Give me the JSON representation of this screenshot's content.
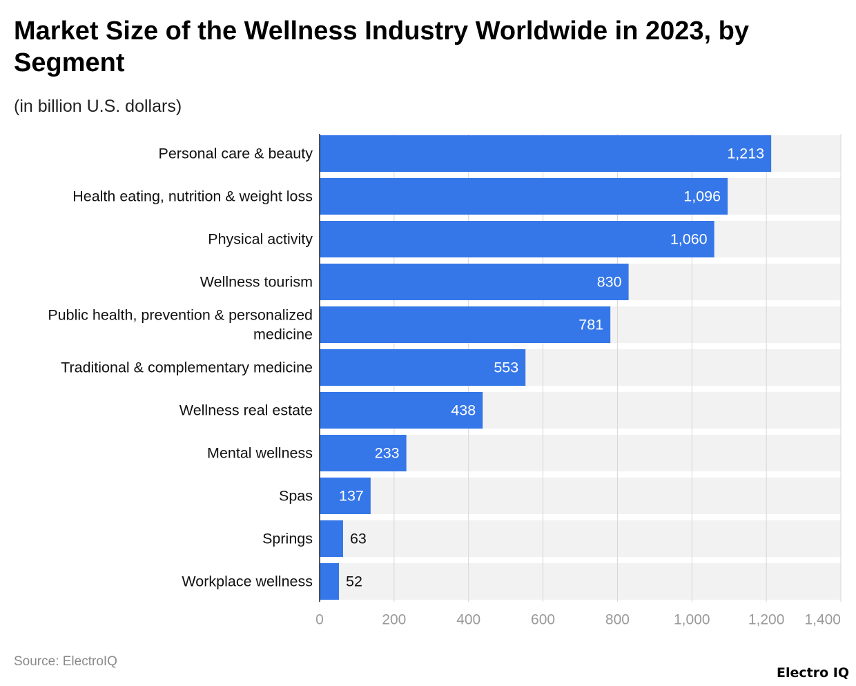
{
  "header": {
    "title": "Market Size of the Wellness Industry Worldwide in 2023, by Segment",
    "subtitle": "(in billion U.S. dollars)"
  },
  "footer": {
    "source": "Source: ElectroIQ",
    "brand": "Electro IQ"
  },
  "colors": {
    "bar": "#3577e8",
    "track": "#f2f2f2",
    "grid": "#d6d6d6",
    "axis": "#222222",
    "label_inside": "#ffffff",
    "label_outside": "#111111"
  },
  "chart_data": {
    "type": "bar",
    "orientation": "horizontal",
    "title": "Market Size of the Wellness Industry Worldwide in 2023, by Segment",
    "subtitle": "(in billion U.S. dollars)",
    "xlabel": "",
    "ylabel": "",
    "categories": [
      "Personal care & beauty",
      "Health eating, nutrition & weight loss",
      "Physical activity",
      "Wellness tourism",
      "Public health, prevention & personalized medicine",
      "Traditional & complementary medicine",
      "Wellness real estate",
      "Mental wellness",
      "Spas",
      "Springs",
      "Workplace wellness"
    ],
    "category_lines": [
      [
        "Personal care & beauty"
      ],
      [
        "Health eating, nutrition & weight loss"
      ],
      [
        "Physical activity"
      ],
      [
        "Wellness tourism"
      ],
      [
        "Public health, prevention & personalized",
        "medicine"
      ],
      [
        "Traditional & complementary medicine"
      ],
      [
        "Wellness real estate"
      ],
      [
        "Mental wellness"
      ],
      [
        "Spas"
      ],
      [
        "Springs"
      ],
      [
        "Workplace wellness"
      ]
    ],
    "values": [
      1213,
      1096,
      1060,
      830,
      781,
      553,
      438,
      233,
      137,
      63,
      52
    ],
    "value_labels": [
      "1,213",
      "1,096",
      "1,060",
      "830",
      "781",
      "553",
      "438",
      "233",
      "137",
      "63",
      "52"
    ],
    "xlim": [
      0,
      1400
    ],
    "ticks": [
      0,
      200,
      400,
      600,
      800,
      1000,
      1200,
      1400
    ],
    "tick_labels": [
      "0",
      "200",
      "400",
      "600",
      "800",
      "1,000",
      "1,200",
      "1,400"
    ],
    "grid": true,
    "legend": "none"
  }
}
